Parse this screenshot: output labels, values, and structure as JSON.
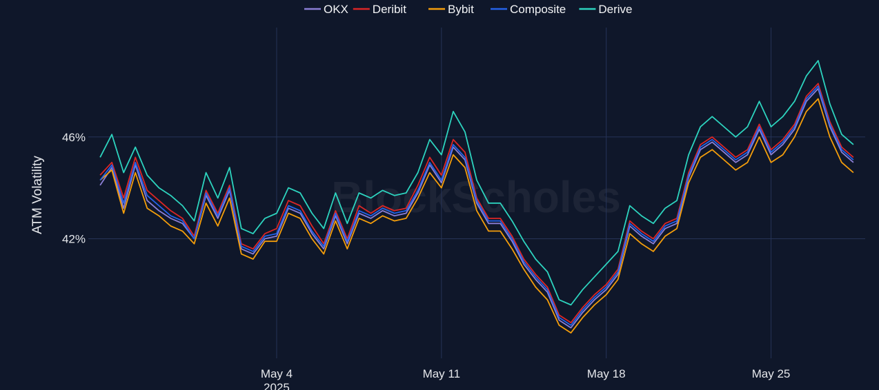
{
  "chart_data": {
    "type": "line",
    "title": "",
    "xlabel": "",
    "ylabel": "ATM Volatility",
    "x_range": [
      "2025-04-26T00:00",
      "2025-05-29T00:00"
    ],
    "ylim": [
      37.3,
      50.3
    ],
    "y_ticks": [
      {
        "value": 42,
        "label": "42%"
      },
      {
        "value": 46,
        "label": "46%"
      }
    ],
    "x_ticks": [
      {
        "date": "2025-05-04",
        "label": "May 4",
        "sublabel": "2025"
      },
      {
        "date": "2025-05-11",
        "label": "May 11",
        "sublabel": ""
      },
      {
        "date": "2025-05-18",
        "label": "May 18",
        "sublabel": ""
      },
      {
        "date": "2025-05-25",
        "label": "May 25",
        "sublabel": ""
      }
    ],
    "grid": true,
    "legend_position": "top-center",
    "watermark": "BlockScholes",
    "x": [
      "2025-04-26T12:00",
      "2025-04-27T00:00",
      "2025-04-27T12:00",
      "2025-04-28T00:00",
      "2025-04-28T12:00",
      "2025-04-29T00:00",
      "2025-04-29T12:00",
      "2025-04-30T00:00",
      "2025-04-30T12:00",
      "2025-05-01T00:00",
      "2025-05-01T12:00",
      "2025-05-02T00:00",
      "2025-05-02T12:00",
      "2025-05-03T00:00",
      "2025-05-03T12:00",
      "2025-05-04T00:00",
      "2025-05-04T12:00",
      "2025-05-05T00:00",
      "2025-05-05T12:00",
      "2025-05-06T00:00",
      "2025-05-06T12:00",
      "2025-05-07T00:00",
      "2025-05-07T12:00",
      "2025-05-08T00:00",
      "2025-05-08T12:00",
      "2025-05-09T00:00",
      "2025-05-09T12:00",
      "2025-05-10T00:00",
      "2025-05-10T12:00",
      "2025-05-11T00:00",
      "2025-05-11T12:00",
      "2025-05-12T00:00",
      "2025-05-12T12:00",
      "2025-05-13T00:00",
      "2025-05-13T12:00",
      "2025-05-14T00:00",
      "2025-05-14T12:00",
      "2025-05-15T00:00",
      "2025-05-15T12:00",
      "2025-05-16T00:00",
      "2025-05-16T12:00",
      "2025-05-17T00:00",
      "2025-05-17T12:00",
      "2025-05-18T00:00",
      "2025-05-18T12:00",
      "2025-05-19T00:00",
      "2025-05-19T12:00",
      "2025-05-20T00:00",
      "2025-05-20T12:00",
      "2025-05-21T00:00",
      "2025-05-21T12:00",
      "2025-05-22T00:00",
      "2025-05-22T12:00",
      "2025-05-23T00:00",
      "2025-05-23T12:00",
      "2025-05-24T00:00",
      "2025-05-24T12:00",
      "2025-05-25T00:00",
      "2025-05-25T12:00",
      "2025-05-26T00:00",
      "2025-05-26T12:00",
      "2025-05-27T00:00",
      "2025-05-27T12:00",
      "2025-05-28T00:00",
      "2025-05-28T12:00"
    ],
    "series": [
      {
        "name": "OKX",
        "color": "#8b7fd6",
        "values": [
          44.1,
          44.8,
          43.2,
          44.9,
          43.5,
          43.1,
          42.8,
          42.6,
          42.0,
          43.7,
          42.8,
          43.9,
          41.6,
          41.4,
          42.0,
          42.1,
          43.2,
          43.0,
          42.2,
          41.6,
          42.9,
          41.8,
          43.0,
          42.8,
          43.1,
          42.9,
          43.0,
          43.8,
          44.9,
          44.2,
          45.6,
          45.1,
          43.4,
          42.6,
          42.6,
          41.9,
          41.0,
          40.4,
          39.9,
          38.8,
          38.5,
          39.1,
          39.6,
          40.0,
          40.6,
          42.5,
          42.1,
          41.8,
          42.4,
          42.6,
          44.4,
          45.5,
          45.8,
          45.4,
          45.0,
          45.3,
          46.3,
          45.3,
          45.7,
          46.3,
          47.4,
          47.9,
          46.4,
          45.4,
          45.0
        ]
      },
      {
        "name": "Deribit",
        "color": "#dc2626",
        "values": [
          44.5,
          45.0,
          43.6,
          45.2,
          43.9,
          43.5,
          43.1,
          42.8,
          42.1,
          43.9,
          43.0,
          44.1,
          41.8,
          41.6,
          42.2,
          42.4,
          43.5,
          43.3,
          42.5,
          41.8,
          43.1,
          42.0,
          43.3,
          43.0,
          43.3,
          43.1,
          43.2,
          44.1,
          45.2,
          44.5,
          45.9,
          45.4,
          43.6,
          42.8,
          42.8,
          42.1,
          41.2,
          40.6,
          40.1,
          39.0,
          38.7,
          39.3,
          39.8,
          40.2,
          40.8,
          42.7,
          42.3,
          42.0,
          42.6,
          42.8,
          44.6,
          45.7,
          46.0,
          45.6,
          45.2,
          45.5,
          46.5,
          45.5,
          45.9,
          46.5,
          47.6,
          48.1,
          46.6,
          45.6,
          45.2
        ]
      },
      {
        "name": "Bybit",
        "color": "#f59e0b",
        "values": [
          44.3,
          44.7,
          43.0,
          44.6,
          43.2,
          42.9,
          42.5,
          42.3,
          41.8,
          43.4,
          42.5,
          43.6,
          41.4,
          41.2,
          41.9,
          41.9,
          43.0,
          42.8,
          42.0,
          41.4,
          42.7,
          41.6,
          42.8,
          42.6,
          42.9,
          42.7,
          42.8,
          43.6,
          44.6,
          44.0,
          45.3,
          44.8,
          43.1,
          42.3,
          42.3,
          41.6,
          40.8,
          40.1,
          39.6,
          38.6,
          38.3,
          38.9,
          39.4,
          39.8,
          40.4,
          42.2,
          41.8,
          41.5,
          42.1,
          42.4,
          44.2,
          45.2,
          45.5,
          45.1,
          44.7,
          45.0,
          46.0,
          45.0,
          45.3,
          46.0,
          47.0,
          47.5,
          46.0,
          45.0,
          44.6
        ]
      },
      {
        "name": "Composite",
        "color": "#2563eb",
        "values": [
          44.3,
          44.9,
          43.4,
          45.0,
          43.7,
          43.3,
          42.9,
          42.7,
          42.0,
          43.8,
          42.9,
          44.0,
          41.7,
          41.5,
          42.1,
          42.2,
          43.3,
          43.1,
          42.3,
          41.7,
          43.0,
          41.9,
          43.1,
          42.9,
          43.2,
          43.0,
          43.1,
          43.9,
          45.0,
          44.3,
          45.7,
          45.2,
          43.5,
          42.7,
          42.7,
          42.0,
          41.1,
          40.5,
          40.0,
          38.9,
          38.6,
          39.2,
          39.7,
          40.1,
          40.7,
          42.6,
          42.2,
          41.9,
          42.5,
          42.7,
          44.5,
          45.6,
          45.9,
          45.5,
          45.1,
          45.4,
          46.4,
          45.4,
          45.8,
          46.4,
          47.5,
          48.0,
          46.5,
          45.5,
          45.1
        ]
      },
      {
        "name": "Derive",
        "color": "#2dd4bf",
        "values": [
          45.2,
          46.1,
          44.6,
          45.6,
          44.5,
          44.0,
          43.7,
          43.3,
          42.7,
          44.6,
          43.6,
          44.8,
          42.4,
          42.2,
          42.8,
          43.0,
          44.0,
          43.8,
          43.0,
          42.4,
          43.8,
          42.6,
          43.8,
          43.6,
          43.9,
          43.7,
          43.8,
          44.6,
          45.9,
          45.3,
          47.0,
          46.2,
          44.3,
          43.4,
          43.4,
          42.7,
          41.9,
          41.2,
          40.7,
          39.6,
          39.4,
          40.0,
          40.5,
          41.0,
          41.5,
          43.3,
          42.9,
          42.6,
          43.2,
          43.5,
          45.3,
          46.4,
          46.8,
          46.4,
          46.0,
          46.4,
          47.4,
          46.4,
          46.8,
          47.4,
          48.4,
          49.0,
          47.3,
          46.1,
          45.7
        ]
      }
    ]
  }
}
